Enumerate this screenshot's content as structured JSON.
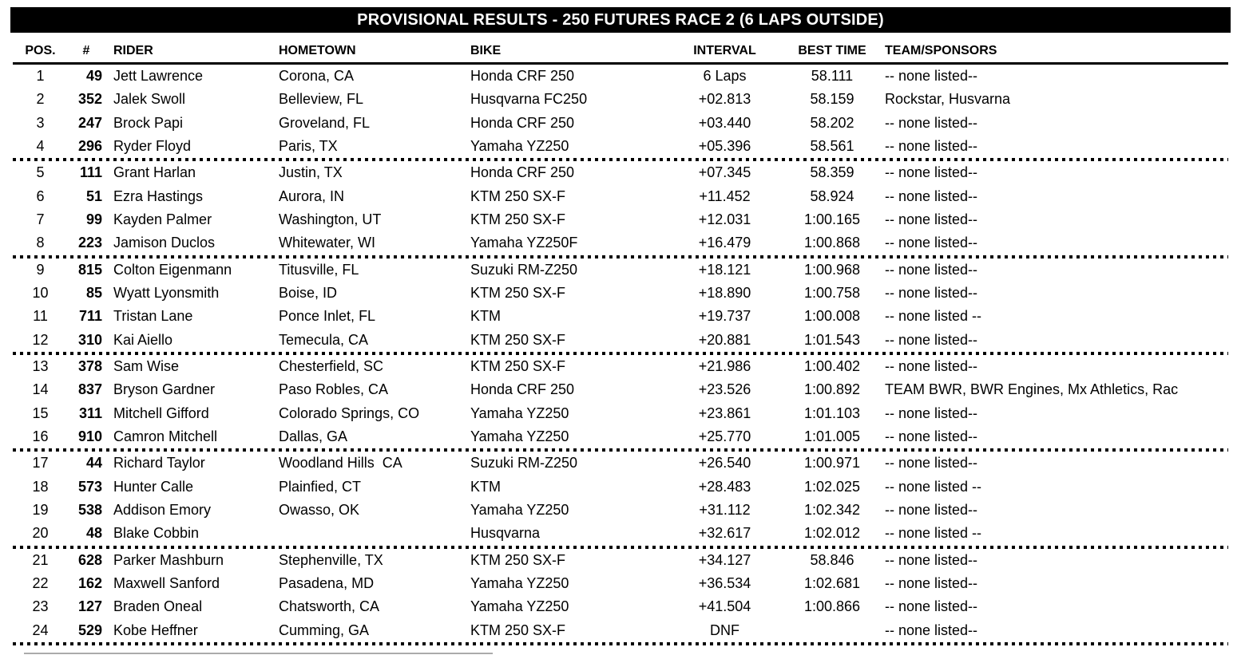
{
  "title": "PROVISIONAL RESULTS - 250 FUTURES RACE 2 (6 LAPS OUTSIDE)",
  "columns": {
    "pos": "POS.",
    "num": "#",
    "rider": "RIDER",
    "hometown": "HOMETOWN",
    "bike": "BIKE",
    "interval": "INTERVAL",
    "best_time": "BEST TIME",
    "team": "TEAM/SPONSORS"
  },
  "colors": {
    "title_bar_bg": "#000000",
    "title_bar_text": "#ffffff",
    "body_text": "#000000",
    "cropped_rule_gray": "#ababab"
  },
  "rows": [
    {
      "pos": "1",
      "num": "49",
      "rider": "Jett Lawrence",
      "hometown": "Corona, CA",
      "bike": "Honda CRF 250",
      "interval": "6 Laps",
      "best_time": "58.111",
      "team": "-- none listed--"
    },
    {
      "pos": "2",
      "num": "352",
      "rider": "Jalek Swoll",
      "hometown": "Belleview, FL",
      "bike": "Husqvarna FC250",
      "interval": "+02.813",
      "best_time": "58.159",
      "team": "Rockstar, Husvarna"
    },
    {
      "pos": "3",
      "num": "247",
      "rider": "Brock Papi",
      "hometown": "Groveland, FL",
      "bike": "Honda CRF 250",
      "interval": "+03.440",
      "best_time": "58.202",
      "team": "-- none listed--"
    },
    {
      "pos": "4",
      "num": "296",
      "rider": "Ryder Floyd",
      "hometown": "Paris, TX",
      "bike": "Yamaha YZ250",
      "interval": "+05.396",
      "best_time": "58.561",
      "team": "-- none listed--"
    },
    {
      "pos": "5",
      "num": "111",
      "rider": "Grant Harlan",
      "hometown": "Justin, TX",
      "bike": "Honda CRF 250",
      "interval": "+07.345",
      "best_time": "58.359",
      "team": "-- none listed--"
    },
    {
      "pos": "6",
      "num": "51",
      "rider": "Ezra Hastings",
      "hometown": "Aurora, IN",
      "bike": "KTM 250 SX-F",
      "interval": "+11.452",
      "best_time": "58.924",
      "team": "-- none listed--"
    },
    {
      "pos": "7",
      "num": "99",
      "rider": "Kayden Palmer",
      "hometown": "Washington, UT",
      "bike": "KTM 250 SX-F",
      "interval": "+12.031",
      "best_time": "1:00.165",
      "team": "-- none listed--"
    },
    {
      "pos": "8",
      "num": "223",
      "rider": "Jamison Duclos",
      "hometown": "Whitewater, WI",
      "bike": "Yamaha YZ250F",
      "interval": "+16.479",
      "best_time": "1:00.868",
      "team": "-- none listed--"
    },
    {
      "pos": "9",
      "num": "815",
      "rider": "Colton Eigenmann",
      "hometown": "Titusville, FL",
      "bike": "Suzuki RM-Z250",
      "interval": "+18.121",
      "best_time": "1:00.968",
      "team": "-- none listed--"
    },
    {
      "pos": "10",
      "num": "85",
      "rider": "Wyatt Lyonsmith",
      "hometown": "Boise, ID",
      "bike": "KTM 250 SX-F",
      "interval": "+18.890",
      "best_time": "1:00.758",
      "team": "-- none listed--"
    },
    {
      "pos": "11",
      "num": "711",
      "rider": "Tristan Lane",
      "hometown": "Ponce Inlet, FL",
      "bike": "KTM",
      "interval": "+19.737",
      "best_time": "1:00.008",
      "team": "-- none listed --"
    },
    {
      "pos": "12",
      "num": "310",
      "rider": "Kai Aiello",
      "hometown": "Temecula, CA",
      "bike": "KTM 250 SX-F",
      "interval": "+20.881",
      "best_time": "1:01.543",
      "team": "-- none listed--"
    },
    {
      "pos": "13",
      "num": "378",
      "rider": "Sam Wise",
      "hometown": "Chesterfield, SC",
      "bike": "KTM 250 SX-F",
      "interval": "+21.986",
      "best_time": "1:00.402",
      "team": "-- none listed--"
    },
    {
      "pos": "14",
      "num": "837",
      "rider": "Bryson Gardner",
      "hometown": "Paso Robles, CA",
      "bike": "Honda CRF 250",
      "interval": "+23.526",
      "best_time": "1:00.892",
      "team": "TEAM BWR, BWR Engines, Mx Athletics, Rac"
    },
    {
      "pos": "15",
      "num": "311",
      "rider": "Mitchell Gifford",
      "hometown": "Colorado Springs, CO",
      "bike": "Yamaha YZ250",
      "interval": "+23.861",
      "best_time": "1:01.103",
      "team": "-- none listed--"
    },
    {
      "pos": "16",
      "num": "910",
      "rider": "Camron Mitchell",
      "hometown": "Dallas, GA",
      "bike": "Yamaha YZ250",
      "interval": "+25.770",
      "best_time": "1:01.005",
      "team": "-- none listed--"
    },
    {
      "pos": "17",
      "num": "44",
      "rider": "Richard Taylor",
      "hometown": "Woodland Hills  CA",
      "bike": "Suzuki RM-Z250",
      "interval": "+26.540",
      "best_time": "1:00.971",
      "team": "-- none listed--"
    },
    {
      "pos": "18",
      "num": "573",
      "rider": "Hunter Calle",
      "hometown": "Plainfied, CT",
      "bike": "KTM",
      "interval": "+28.483",
      "best_time": "1:02.025",
      "team": "-- none listed --"
    },
    {
      "pos": "19",
      "num": "538",
      "rider": "Addison Emory",
      "hometown": "Owasso, OK",
      "bike": "Yamaha YZ250",
      "interval": "+31.112",
      "best_time": "1:02.342",
      "team": "-- none listed--"
    },
    {
      "pos": "20",
      "num": "48",
      "rider": "Blake Cobbin",
      "hometown": "",
      "bike": "Husqvarna",
      "interval": "+32.617",
      "best_time": "1:02.012",
      "team": "-- none listed --"
    },
    {
      "pos": "21",
      "num": "628",
      "rider": "Parker Mashburn",
      "hometown": "Stephenville, TX",
      "bike": "KTM 250 SX-F",
      "interval": "+34.127",
      "best_time": "58.846",
      "team": "-- none listed--"
    },
    {
      "pos": "22",
      "num": "162",
      "rider": "Maxwell Sanford",
      "hometown": "Pasadena, MD",
      "bike": "Yamaha YZ250",
      "interval": "+36.534",
      "best_time": "1:02.681",
      "team": "-- none listed--"
    },
    {
      "pos": "23",
      "num": "127",
      "rider": "Braden Oneal",
      "hometown": "Chatsworth, CA",
      "bike": "Yamaha YZ250",
      "interval": "+41.504",
      "best_time": "1:00.866",
      "team": "-- none listed--"
    },
    {
      "pos": "24",
      "num": "529",
      "rider": "Kobe Heffner",
      "hometown": "Cumming, GA",
      "bike": "KTM 250 SX-F",
      "interval": "DNF",
      "best_time": "",
      "team": "-- none listed--"
    }
  ]
}
